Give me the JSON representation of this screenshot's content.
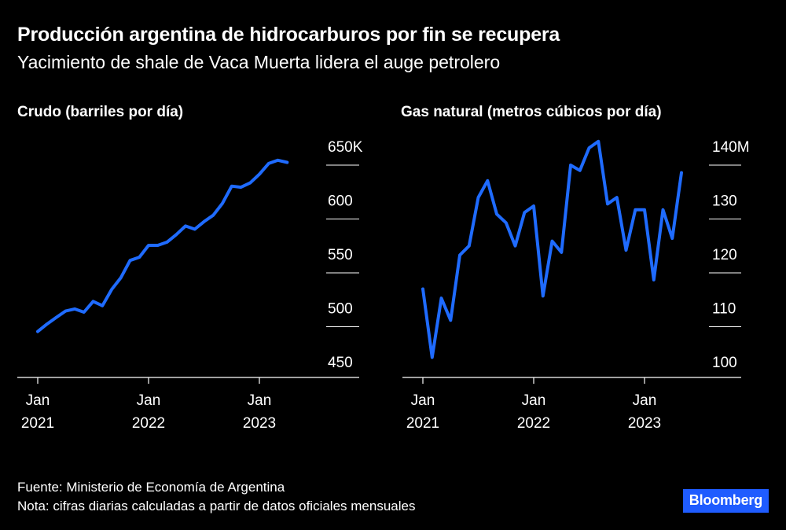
{
  "title": "Producción argentina de hidrocarburos por fin se recupera",
  "subtitle": "Yacimiento de shale de Vaca Muerta lidera el auge petrolero",
  "footer": {
    "source": "Fuente: Ministerio de Economía de Argentina",
    "note": "Nota: cifras diarias calculadas a partir de datos oficiales mensuales",
    "brand": "Bloomberg"
  },
  "colors": {
    "line": "#1f6bff",
    "background": "#000000",
    "text": "#ffffff"
  },
  "chart_data": [
    {
      "type": "line",
      "title": "Crudo (barriles por día)",
      "x_ticks": [
        {
          "label": [
            "Jan",
            "2021"
          ],
          "month_index": 0
        },
        {
          "label": [
            "Jan",
            "2022"
          ],
          "month_index": 12
        },
        {
          "label": [
            "Jan",
            "2023"
          ],
          "month_index": 24
        }
      ],
      "y_ticks": [
        "450",
        "500",
        "550",
        "600",
        "650K"
      ],
      "y_tick_values": [
        450,
        500,
        550,
        600,
        650
      ],
      "ylim": [
        440,
        665
      ],
      "xlim": [
        -0.5,
        30
      ],
      "series": [
        {
          "name": "Crudo",
          "unit": "miles de barriles por día",
          "values": [
            478,
            485,
            491,
            497,
            499,
            496,
            506,
            502,
            517,
            528,
            544,
            547,
            558,
            558,
            561,
            568,
            576,
            573,
            580,
            586,
            597,
            613,
            612,
            616,
            624,
            634,
            637,
            635
          ]
        }
      ]
    },
    {
      "type": "line",
      "title": "Gas natural (metros cúbicos por día)",
      "x_ticks": [
        {
          "label": [
            "Jan",
            "2021"
          ],
          "month_index": 0
        },
        {
          "label": [
            "Jan",
            "2022"
          ],
          "month_index": 12
        },
        {
          "label": [
            "Jan",
            "2023"
          ],
          "month_index": 24
        }
      ],
      "y_ticks": [
        "100",
        "110",
        "120",
        "130",
        "140M"
      ],
      "y_tick_values": [
        100,
        110,
        120,
        130,
        140
      ],
      "ylim": [
        97,
        142
      ],
      "xlim": [
        -0.5,
        30
      ],
      "series": [
        {
          "name": "Gas natural",
          "unit": "millones de metros cúbicos por día",
          "values": [
            113.5,
            100.8,
            111.8,
            107.7,
            119.8,
            121.5,
            130.5,
            133.6,
            127.4,
            125.8,
            121.5,
            127.7,
            128.9,
            112.2,
            122.4,
            120.3,
            136.5,
            135.5,
            139.7,
            140.9,
            129.3,
            130.5,
            120.7,
            128.2,
            128.2,
            115.2,
            128.2,
            122.9,
            135.1
          ]
        }
      ]
    }
  ]
}
